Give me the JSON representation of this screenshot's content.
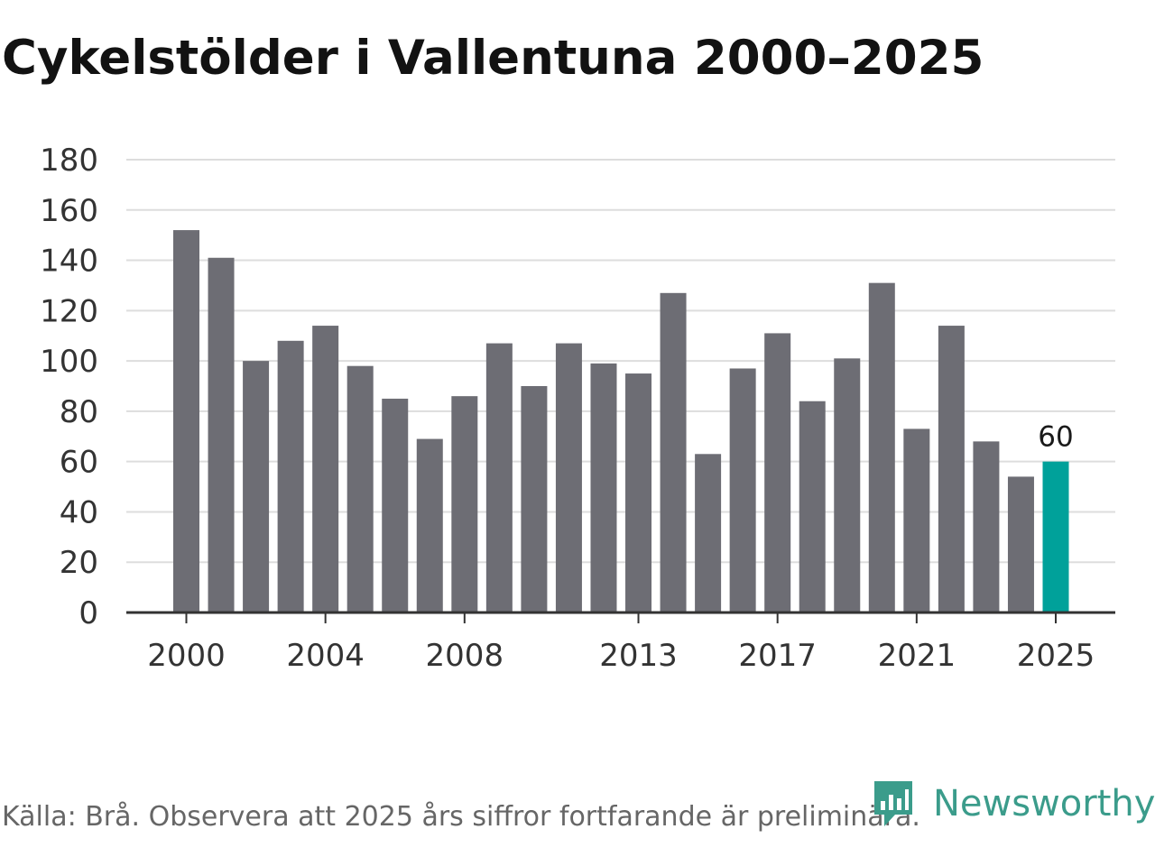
{
  "title": "Cykelstölder i Vallentuna 2000–2025",
  "source": "Källa: Brå. Observera att 2025 års siffror fortfarande är preliminära.",
  "brand": {
    "name": "Newsworthy",
    "icon": "newsworthy-logo-icon",
    "color": "#3b9c8b"
  },
  "colors": {
    "bar": "#6d6d74",
    "highlight": "#00a19a",
    "grid": "#dddddd",
    "axis": "#333333"
  },
  "chart_data": {
    "type": "bar",
    "title": "Cykelstölder i Vallentuna 2000–2025",
    "xlabel": "",
    "ylabel": "",
    "ylim": [
      0,
      180
    ],
    "yticks": [
      0,
      20,
      40,
      60,
      80,
      100,
      120,
      140,
      160,
      180
    ],
    "categories": [
      "2000",
      "2001",
      "2002",
      "2003",
      "2004",
      "2005",
      "2006",
      "2007",
      "2008",
      "2009",
      "2010",
      "2011",
      "2012",
      "2013",
      "2014",
      "2015",
      "2016",
      "2017",
      "2018",
      "2019",
      "2020",
      "2021",
      "2022",
      "2023",
      "2024",
      "2025"
    ],
    "values": [
      152,
      141,
      100,
      108,
      114,
      98,
      85,
      69,
      86,
      107,
      90,
      107,
      99,
      95,
      127,
      63,
      97,
      111,
      84,
      101,
      131,
      73,
      114,
      68,
      54,
      60
    ],
    "xtick_labels": [
      "2000",
      "2004",
      "2008",
      "2013",
      "2017",
      "2021",
      "2025"
    ],
    "highlight": "2025",
    "data_labels": [
      {
        "category": "2025",
        "text": "60"
      }
    ],
    "grid": true,
    "legend": "none"
  }
}
